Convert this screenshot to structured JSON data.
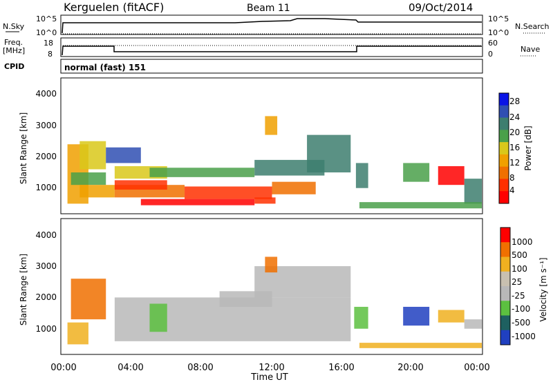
{
  "header": {
    "station": "Kerguelen (fitACF)",
    "beam": "Beam 11",
    "date": "09/Oct/2014"
  },
  "nsky_panel": {
    "left_label": "N.Sky",
    "left_ticks": [
      "10^5",
      "10^0"
    ],
    "right_ticks": [
      "10^5",
      "10^0"
    ],
    "right_label": "N.Search"
  },
  "freq_panel": {
    "left_label_1": "Freq.",
    "left_label_2": "[MHz]",
    "left_ticks": [
      "18",
      "8"
    ],
    "right_ticks": [
      "60",
      "0"
    ],
    "right_label": "Nave"
  },
  "cpid_panel": {
    "label": "CPID",
    "mode": "normal (fast) 151"
  },
  "chart_data": [
    {
      "type": "heatmap",
      "name": "power",
      "ylabel": "Slant Range [km]",
      "yticks": [
        "4000",
        "3000",
        "2000",
        "1000"
      ],
      "ylim": [
        200,
        4500
      ],
      "xlim": [
        0,
        24
      ],
      "colorbar_label": "Power [dB]",
      "colorbar_ticks": [
        "28",
        "24",
        "20",
        "16",
        "12",
        "8",
        "4"
      ],
      "colorscale": [
        "#0a14e6",
        "#2f4fb3",
        "#3d7e6f",
        "#4aa04a",
        "#d9c81a",
        "#f0a000",
        "#f07000",
        "#ff3000",
        "#ff0000"
      ],
      "blobs": [
        {
          "x": [
            0.3,
            1.5
          ],
          "y": [
            500,
            2400
          ],
          "level": 5
        },
        {
          "x": [
            1.0,
            2.5
          ],
          "y": [
            1600,
            2500
          ],
          "level": 4
        },
        {
          "x": [
            2.5,
            4.5
          ],
          "y": [
            1800,
            2300
          ],
          "level": 1
        },
        {
          "x": [
            0.5,
            2.5
          ],
          "y": [
            1100,
            1500
          ],
          "level": 3
        },
        {
          "x": [
            3.0,
            6.0
          ],
          "y": [
            1300,
            1700
          ],
          "level": 4
        },
        {
          "x": [
            5.0,
            11.0
          ],
          "y": [
            1350,
            1650
          ],
          "level": 3
        },
        {
          "x": [
            11.0,
            15.0
          ],
          "y": [
            1400,
            1900
          ],
          "level": 2
        },
        {
          "x": [
            1.0,
            3.0
          ],
          "y": [
            700,
            1100
          ],
          "level": 5
        },
        {
          "x": [
            3.0,
            7.0
          ],
          "y": [
            700,
            1100
          ],
          "level": 6
        },
        {
          "x": [
            7.0,
            12.0
          ],
          "y": [
            650,
            1050
          ],
          "level": 7
        },
        {
          "x": [
            12.0,
            14.5
          ],
          "y": [
            800,
            1200
          ],
          "level": 6
        },
        {
          "x": [
            4.5,
            11.0
          ],
          "y": [
            450,
            650
          ],
          "level": 8
        },
        {
          "x": [
            11.0,
            12.2
          ],
          "y": [
            500,
            700
          ],
          "level": 7
        },
        {
          "x": [
            3.0,
            6.0
          ],
          "y": [
            950,
            1250
          ],
          "level": 7
        },
        {
          "x": [
            14.0,
            16.5
          ],
          "y": [
            1500,
            2700
          ],
          "level": 2
        },
        {
          "x": [
            11.6,
            12.3
          ],
          "y": [
            2700,
            3300
          ],
          "level": 5
        },
        {
          "x": [
            16.8,
            17.5
          ],
          "y": [
            1000,
            1800
          ],
          "level": 2
        },
        {
          "x": [
            19.5,
            21.0
          ],
          "y": [
            1200,
            1800
          ],
          "level": 3
        },
        {
          "x": [
            21.5,
            23.0
          ],
          "y": [
            1100,
            1700
          ],
          "level": 8
        },
        {
          "x": [
            23.0,
            24.0
          ],
          "y": [
            500,
            1300
          ],
          "level": 2
        },
        {
          "x": [
            17.0,
            24.0
          ],
          "y": [
            350,
            550
          ],
          "level": 3
        }
      ]
    },
    {
      "type": "heatmap",
      "name": "velocity",
      "ylabel": "Slant Range [km]",
      "yticks": [
        "4000",
        "3000",
        "2000",
        "1000"
      ],
      "ylim": [
        200,
        4500
      ],
      "xlim": [
        0,
        24
      ],
      "xticks": [
        "00:00",
        "04:00",
        "08:00",
        "12:00",
        "16:00",
        "20:00",
        "00:00"
      ],
      "xlabel": "Time UT",
      "colorbar_label": "Velocity [m s⁻¹]",
      "colorbar_ticks": [
        "1000",
        "500",
        "100",
        "25",
        "-25",
        "-100",
        "-500",
        "-1000"
      ],
      "colorscale": [
        "#2040c0",
        "#1e6060",
        "#5cc040",
        "#b8b8b8",
        "#c8c0b0",
        "#f0b020",
        "#f07000",
        "#ff0000"
      ],
      "blobs": [
        {
          "x": [
            0.5,
            2.5
          ],
          "y": [
            1300,
            2600
          ],
          "level": 6
        },
        {
          "x": [
            0.3,
            1.5
          ],
          "y": [
            500,
            1200
          ],
          "level": 5
        },
        {
          "x": [
            3.0,
            16.5
          ],
          "y": [
            600,
            2000
          ],
          "level": 3
        },
        {
          "x": [
            5.0,
            6.0
          ],
          "y": [
            900,
            1800
          ],
          "level": 2
        },
        {
          "x": [
            9.0,
            12.0
          ],
          "y": [
            1700,
            2200
          ],
          "level": 3
        },
        {
          "x": [
            11.0,
            16.5
          ],
          "y": [
            2000,
            3000
          ],
          "level": 3
        },
        {
          "x": [
            11.6,
            12.3
          ],
          "y": [
            2800,
            3300
          ],
          "level": 6
        },
        {
          "x": [
            16.7,
            17.5
          ],
          "y": [
            1000,
            1700
          ],
          "level": 2
        },
        {
          "x": [
            19.5,
            21.0
          ],
          "y": [
            1100,
            1700
          ],
          "level": 0
        },
        {
          "x": [
            21.5,
            23.0
          ],
          "y": [
            1200,
            1600
          ],
          "level": 5
        },
        {
          "x": [
            23.0,
            24.0
          ],
          "y": [
            1000,
            1300
          ],
          "level": 3
        },
        {
          "x": [
            17.0,
            24.0
          ],
          "y": [
            380,
            550
          ],
          "level": 5
        }
      ]
    }
  ]
}
